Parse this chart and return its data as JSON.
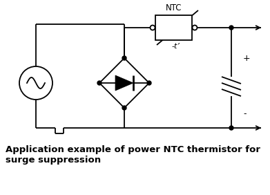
{
  "bg_color": "#ffffff",
  "line_color": "#000000",
  "title_text": "Application example of power NTC thermistor for\nsurge suppression",
  "title_fontsize": 9.5,
  "ntc_label": "NTC",
  "ntc_sublabel": "-t’",
  "plus_label": "+",
  "minus_label": "-",
  "fig_width": 3.91,
  "fig_height": 2.82,
  "dpi": 100
}
